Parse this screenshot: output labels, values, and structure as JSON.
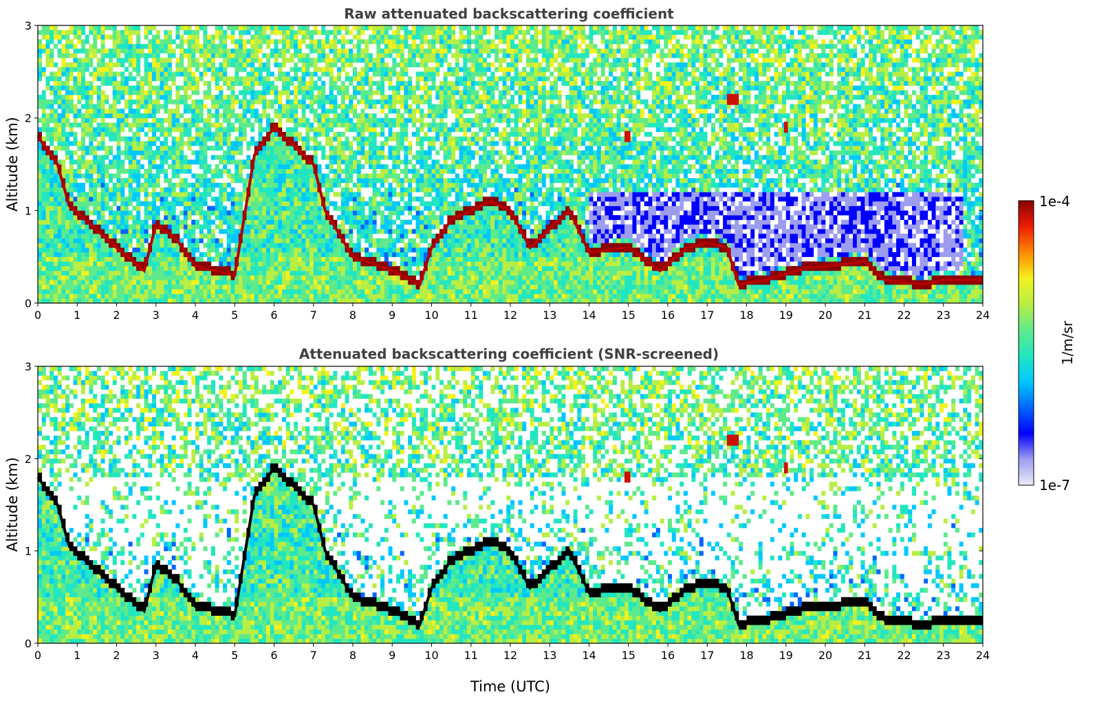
{
  "colors": {
    "jet": [
      "#ececf6",
      "#9d9df0",
      "#0000ff",
      "#0066ff",
      "#00c8ff",
      "#22e6c0",
      "#5eea8a",
      "#b8ee44",
      "#f2f21e",
      "#ff8a00",
      "#ee1c00",
      "#8b0000"
    ],
    "very_strong": "#000000",
    "text": "#404040"
  },
  "chart_data": [
    {
      "type": "heatmap",
      "title": "Raw attenuated backscattering coefficient",
      "ylabel": "Altitude (km)",
      "xlabel": "",
      "xlim": [
        0,
        24
      ],
      "ylim": [
        0,
        3
      ],
      "x_ticks": [
        "0",
        "1",
        "2",
        "3",
        "4",
        "5",
        "6",
        "7",
        "8",
        "9",
        "10",
        "11",
        "12",
        "13",
        "14",
        "15",
        "16",
        "17",
        "18",
        "19",
        "20",
        "21",
        "22",
        "23",
        "24"
      ],
      "y_ticks": [
        "0",
        "1",
        "2",
        "3"
      ],
      "boundary_layer_top_km": {
        "time_utc": [
          0,
          0.5,
          0.8,
          1.2,
          2.0,
          2.7,
          3.0,
          3.5,
          4.0,
          5.0,
          5.5,
          6.0,
          7.0,
          7.3,
          8.0,
          9.0,
          9.7,
          10.0,
          10.5,
          11.0,
          11.5,
          12.0,
          12.5,
          13.0,
          13.5,
          14.0,
          15.0,
          15.8,
          16.5,
          17.0,
          17.5,
          17.8,
          18.5,
          19.5,
          20.5,
          21.0,
          21.5,
          22.5,
          23.0,
          24.0
        ],
        "altitude_km": [
          1.8,
          1.5,
          1.05,
          0.9,
          0.6,
          0.35,
          0.85,
          0.7,
          0.4,
          0.3,
          1.6,
          1.9,
          1.5,
          1.0,
          0.5,
          0.35,
          0.2,
          0.6,
          0.9,
          1.0,
          1.1,
          1.0,
          0.6,
          0.8,
          1.0,
          0.55,
          0.6,
          0.35,
          0.6,
          0.65,
          0.6,
          0.2,
          0.25,
          0.38,
          0.42,
          0.45,
          0.25,
          0.2,
          0.25,
          0.25
        ]
      },
      "elevated_layers": [
        {
          "t0": 17.5,
          "t1": 17.8,
          "alt_km": 2.2
        },
        {
          "t0": 18.95,
          "t1": 19.05,
          "alt_km": 1.9
        },
        {
          "t0": 14.9,
          "t1": 15.05,
          "alt_km": 1.8
        }
      ]
    },
    {
      "type": "heatmap",
      "title": "Attenuated backscattering coefficient (SNR-screened)",
      "ylabel": "Altitude (km)",
      "xlabel": "Time (UTC)",
      "xlim": [
        0,
        24
      ],
      "ylim": [
        0,
        3
      ],
      "x_ticks": [
        "0",
        "1",
        "2",
        "3",
        "4",
        "5",
        "6",
        "7",
        "8",
        "9",
        "10",
        "11",
        "12",
        "13",
        "14",
        "15",
        "16",
        "17",
        "18",
        "19",
        "20",
        "21",
        "22",
        "23",
        "24"
      ],
      "y_ticks": [
        "0",
        "1",
        "2",
        "3"
      ],
      "boundary_layer_top_km": {
        "time_utc": [
          0,
          0.5,
          0.8,
          1.2,
          2.0,
          2.7,
          3.0,
          3.5,
          4.0,
          5.0,
          5.5,
          6.0,
          7.0,
          7.3,
          8.0,
          9.0,
          9.7,
          10.0,
          10.5,
          11.0,
          11.5,
          12.0,
          12.5,
          13.0,
          13.5,
          14.0,
          15.0,
          15.8,
          16.5,
          17.0,
          17.5,
          17.8,
          18.5,
          19.5,
          20.5,
          21.0,
          21.5,
          22.5,
          23.0,
          24.0
        ],
        "altitude_km": [
          1.8,
          1.5,
          1.05,
          0.9,
          0.6,
          0.35,
          0.85,
          0.7,
          0.4,
          0.3,
          1.6,
          1.9,
          1.5,
          1.0,
          0.5,
          0.35,
          0.2,
          0.6,
          0.9,
          1.0,
          1.1,
          1.0,
          0.6,
          0.8,
          1.0,
          0.55,
          0.6,
          0.35,
          0.6,
          0.65,
          0.6,
          0.2,
          0.25,
          0.38,
          0.42,
          0.45,
          0.25,
          0.2,
          0.25,
          0.25
        ]
      },
      "elevated_layers": [
        {
          "t0": 17.5,
          "t1": 17.8,
          "alt_km": 2.2
        },
        {
          "t0": 18.95,
          "t1": 19.05,
          "alt_km": 1.9
        },
        {
          "t0": 14.9,
          "t1": 15.05,
          "alt_km": 1.8
        }
      ]
    }
  ],
  "colorbar": {
    "label": "1/m/sr",
    "max_label": "1e-4",
    "min_label": "1e-7",
    "range": [
      1e-07,
      0.0001
    ],
    "scale": "log",
    "colormap": "jet"
  }
}
